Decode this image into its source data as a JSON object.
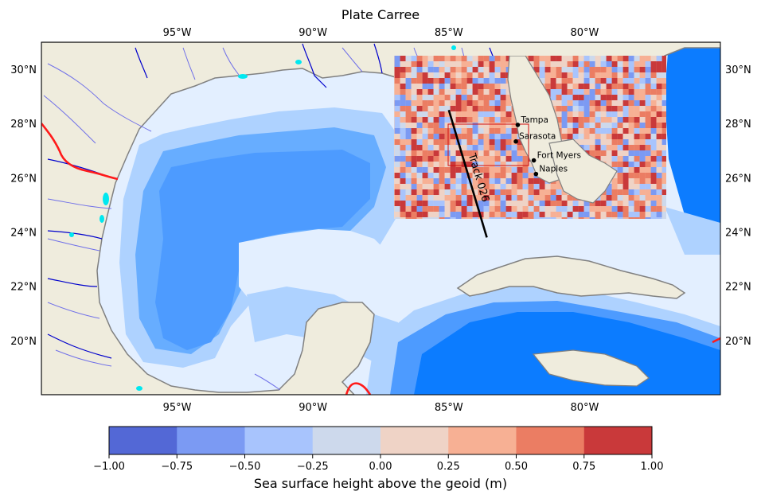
{
  "chart_data": {
    "type": "heatmap",
    "title": "Plate Carree",
    "extent": {
      "lon": [
        -100,
        -75
      ],
      "lat": [
        18,
        31
      ]
    },
    "lon_ticks": [
      {
        "value": -95,
        "label": "95°W"
      },
      {
        "value": -90,
        "label": "90°W"
      },
      {
        "value": -85,
        "label": "85°W"
      },
      {
        "value": -80,
        "label": "80°W"
      }
    ],
    "lat_ticks": [
      {
        "value": 30,
        "label": "30°N"
      },
      {
        "value": 28,
        "label": "28°N"
      },
      {
        "value": 26,
        "label": "26°N"
      },
      {
        "value": 24,
        "label": "24°N"
      },
      {
        "value": 22,
        "label": "22°N"
      },
      {
        "value": 20,
        "label": "20°N"
      }
    ],
    "colorbar": {
      "label": "Sea surface height above the geoid (m)",
      "ticks": [
        "−1.00",
        "−0.75",
        "−0.50",
        "−0.25",
        "0.00",
        "0.25",
        "0.50",
        "0.75",
        "1.00"
      ],
      "levels": [
        -1.0,
        -0.75,
        -0.5,
        -0.25,
        0.0,
        0.25,
        0.5,
        0.75,
        1.0
      ],
      "colors": [
        "#5368d6",
        "#7b9af3",
        "#a8c4fd",
        "#cdd9ec",
        "#efd3c6",
        "#f7b094",
        "#eb7d63",
        "#c9393a"
      ]
    },
    "inset": {
      "lon": [
        -87,
        -77
      ],
      "lat": [
        24.5,
        30.5
      ]
    },
    "box": {
      "lon": [
        -85,
        -82.1
      ],
      "lat": [
        26.4,
        28
      ]
    },
    "track": {
      "label": "Track 026",
      "start": {
        "lon": -85,
        "lat": 28.5
      },
      "end": {
        "lon": -83.6,
        "lat": 23.8
      }
    },
    "cities": [
      {
        "name": "Tampa",
        "lon": -82.46,
        "lat": 27.95
      },
      {
        "name": "Sarasota",
        "lon": -82.53,
        "lat": 27.34
      },
      {
        "name": "Fort Myers",
        "lon": -81.87,
        "lat": 26.64
      },
      {
        "name": "Naples",
        "lon": -81.79,
        "lat": 26.14
      }
    ],
    "colors": {
      "land": "#efecdd",
      "coast": "#808080",
      "ocean_far": "#0c7cff",
      "ocean_mid": "#67adff",
      "ocean_light": "#aed2ff",
      "ocean_pale": "#e3efff",
      "river_major": "#0000cc",
      "river_minor": "#7070e8",
      "lake": "#00e8f0",
      "border": "#ff1a1a"
    }
  }
}
